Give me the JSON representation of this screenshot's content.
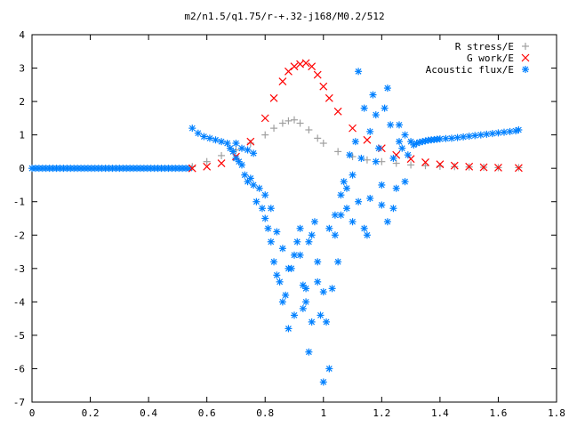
{
  "chart_data": {
    "type": "scatter",
    "title": "m2/n1.5/q1.75/r-+.32-j168/M0.2/512",
    "xlabel": "",
    "ylabel": "",
    "xlim": [
      0,
      1.8
    ],
    "ylim": [
      -7,
      4
    ],
    "xticks": [
      "0",
      "0.2",
      "0.4",
      "0.6",
      "0.8",
      "1",
      "1.2",
      "1.4",
      "1.6",
      "1.8"
    ],
    "yticks": [
      "4",
      "3",
      "2",
      "1",
      "0",
      "-1",
      "-2",
      "-3",
      "-4",
      "-5",
      "-6",
      "-7"
    ],
    "grid": false,
    "legend_position": "top-right",
    "series": [
      {
        "name": "R stress/E",
        "marker": "+",
        "color": "#a0a0a0",
        "x": [
          0.55,
          0.6,
          0.65,
          0.7,
          0.75,
          0.8,
          0.83,
          0.86,
          0.88,
          0.9,
          0.92,
          0.95,
          0.98,
          1.0,
          1.05,
          1.1,
          1.15,
          1.2,
          1.25,
          1.3,
          1.35,
          1.4,
          1.45,
          1.5,
          1.55,
          1.6,
          1.67
        ],
        "y": [
          0.05,
          0.2,
          0.38,
          0.55,
          0.75,
          1.0,
          1.2,
          1.35,
          1.42,
          1.45,
          1.35,
          1.15,
          0.9,
          0.75,
          0.5,
          0.35,
          0.25,
          0.2,
          0.15,
          0.1,
          0.08,
          0.06,
          0.05,
          0.04,
          0.03,
          0.02,
          0.02
        ]
      },
      {
        "name": "G work/E",
        "marker": "x",
        "color": "#ff0000",
        "x": [
          0.55,
          0.6,
          0.65,
          0.7,
          0.75,
          0.8,
          0.83,
          0.86,
          0.88,
          0.9,
          0.92,
          0.94,
          0.96,
          0.98,
          1.0,
          1.02,
          1.05,
          1.1,
          1.15,
          1.2,
          1.25,
          1.3,
          1.35,
          1.4,
          1.45,
          1.5,
          1.55,
          1.6,
          1.67
        ],
        "y": [
          0.0,
          0.05,
          0.15,
          0.35,
          0.8,
          1.5,
          2.1,
          2.6,
          2.9,
          3.05,
          3.12,
          3.15,
          3.05,
          2.8,
          2.45,
          2.1,
          1.7,
          1.2,
          0.85,
          0.6,
          0.4,
          0.28,
          0.18,
          0.12,
          0.08,
          0.05,
          0.03,
          0.02,
          0.01
        ]
      },
      {
        "name": "Acoustic flux/E",
        "marker": "*",
        "color": "#0080ff",
        "x": [
          0.55,
          0.57,
          0.59,
          0.61,
          0.63,
          0.65,
          0.67,
          0.68,
          0.69,
          0.7,
          0.71,
          0.72,
          0.73,
          0.74,
          0.75,
          0.76,
          0.77,
          0.78,
          0.79,
          0.8,
          0.81,
          0.82,
          0.83,
          0.84,
          0.85,
          0.86,
          0.87,
          0.88,
          0.89,
          0.9,
          0.91,
          0.92,
          0.93,
          0.94,
          0.95,
          0.96,
          0.97,
          0.98,
          0.99,
          1.0,
          1.01,
          1.02,
          1.03,
          1.04,
          1.05,
          1.06,
          1.07,
          1.08,
          1.09,
          1.1,
          1.11,
          1.12,
          1.13,
          1.14,
          1.15,
          1.16,
          1.17,
          1.18,
          1.19,
          1.2,
          1.21,
          1.22,
          1.23,
          1.24,
          1.25,
          1.26,
          1.27,
          1.28,
          1.29,
          1.3,
          1.31,
          1.32,
          1.33,
          1.34,
          1.35,
          1.36,
          1.37,
          1.38,
          1.39,
          1.4,
          1.42,
          1.44,
          1.46,
          1.48,
          1.5,
          1.52,
          1.54,
          1.56,
          1.58,
          1.6,
          1.62,
          1.64,
          1.66,
          1.67,
          0.7,
          0.72,
          0.74,
          0.76,
          0.8,
          0.82,
          0.84,
          0.86,
          0.88,
          0.9,
          0.92,
          0.93,
          0.94,
          0.95,
          0.96,
          0.98,
          1.0,
          1.02,
          1.04,
          1.06,
          1.08,
          1.1,
          1.12,
          1.14,
          1.16,
          1.18,
          1.2,
          1.22,
          1.24,
          1.26,
          1.28
        ],
        "y": [
          1.2,
          1.05,
          0.95,
          0.9,
          0.85,
          0.8,
          0.75,
          0.6,
          0.5,
          0.3,
          0.2,
          0.1,
          -0.2,
          -0.4,
          -0.3,
          -0.5,
          -1.0,
          -0.6,
          -1.2,
          -1.5,
          -1.8,
          -2.2,
          -2.8,
          -3.2,
          -3.4,
          -4.0,
          -3.8,
          -4.8,
          -3.0,
          -2.6,
          -2.2,
          -1.8,
          -4.2,
          -3.6,
          -5.5,
          -2.0,
          -1.6,
          -3.4,
          -4.4,
          -6.4,
          -4.6,
          -1.8,
          -3.6,
          -1.4,
          -2.8,
          -0.8,
          -0.4,
          -1.2,
          0.4,
          -0.2,
          0.8,
          2.9,
          0.3,
          -1.8,
          -2.0,
          1.1,
          2.2,
          1.6,
          0.6,
          -0.5,
          1.8,
          2.4,
          1.3,
          -1.2,
          -0.6,
          0.8,
          0.6,
          1.0,
          0.4,
          0.8,
          0.7,
          0.75,
          0.78,
          0.8,
          0.82,
          0.84,
          0.85,
          0.86,
          0.87,
          0.88,
          0.89,
          0.9,
          0.92,
          0.94,
          0.96,
          0.98,
          1.0,
          1.02,
          1.04,
          1.06,
          1.08,
          1.1,
          1.12,
          1.15,
          0.75,
          0.6,
          0.55,
          0.45,
          -0.8,
          -1.2,
          -1.9,
          -2.4,
          -3.0,
          -4.4,
          -2.6,
          -3.5,
          -4.0,
          -2.2,
          -4.6,
          -2.8,
          -3.7,
          -6.0,
          -2.0,
          -1.4,
          -0.6,
          -1.6,
          -1.0,
          1.8,
          -0.9,
          0.2,
          -1.1,
          -1.6,
          0.3,
          1.3,
          -0.4
        ]
      }
    ]
  }
}
